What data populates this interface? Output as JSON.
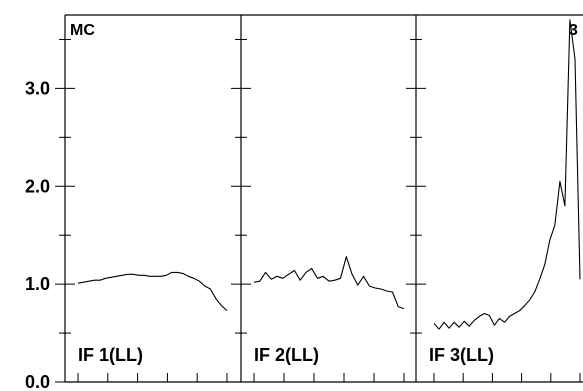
{
  "chart_data": {
    "type": "line",
    "title": "",
    "corner_label": "MC",
    "xlabel": "",
    "ylabel": "",
    "ylim": [
      0,
      3.75
    ],
    "y_ticks": [
      "0.0",
      "1.0",
      "2.0",
      "3.0"
    ],
    "y_tick_values": [
      0,
      1,
      2,
      3
    ],
    "grid": false,
    "panels": [
      {
        "label": "IF 1(LL)",
        "values": [
          1.01,
          1.02,
          1.03,
          1.04,
          1.04,
          1.06,
          1.07,
          1.08,
          1.09,
          1.1,
          1.1,
          1.09,
          1.09,
          1.08,
          1.08,
          1.08,
          1.09,
          1.12,
          1.12,
          1.11,
          1.08,
          1.06,
          1.03,
          0.98,
          0.95,
          0.85,
          0.78,
          0.73
        ]
      },
      {
        "label": "IF 2(LL)",
        "values": [
          1.02,
          1.03,
          1.12,
          1.05,
          1.08,
          1.06,
          1.1,
          1.14,
          1.04,
          1.12,
          1.16,
          1.06,
          1.08,
          1.03,
          1.04,
          1.06,
          1.28,
          1.1,
          0.99,
          1.08,
          0.98,
          0.96,
          0.95,
          0.93,
          0.92,
          0.77,
          0.75
        ]
      },
      {
        "label": "IF 3(LL)",
        "values": [
          0.6,
          0.54,
          0.61,
          0.55,
          0.61,
          0.56,
          0.62,
          0.57,
          0.63,
          0.67,
          0.7,
          0.68,
          0.58,
          0.65,
          0.61,
          0.67,
          0.7,
          0.73,
          0.78,
          0.84,
          0.92,
          1.05,
          1.2,
          1.45,
          1.6,
          2.05,
          1.8,
          3.7,
          3.3,
          1.05
        ]
      }
    ],
    "truncated_panel_label": "3"
  }
}
